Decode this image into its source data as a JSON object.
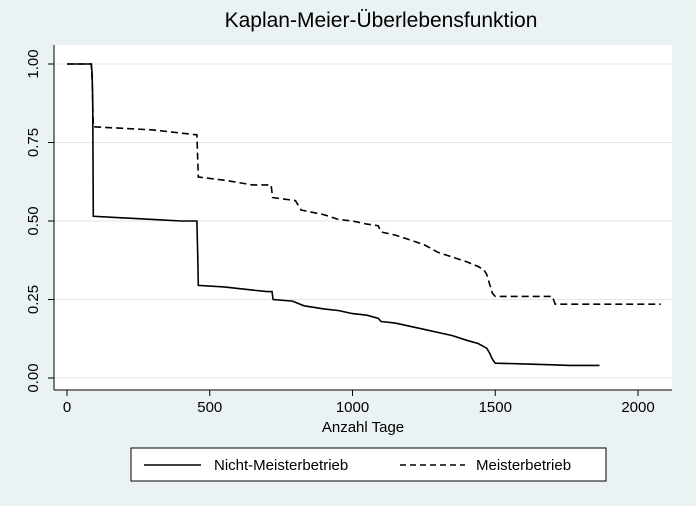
{
  "chart_data": {
    "type": "line",
    "title": "Kaplan-Meier-Überlebensfunktion",
    "xlabel": "Anzahl Tage",
    "ylabel": "",
    "xlim": [
      0,
      2000
    ],
    "ylim": [
      0,
      1
    ],
    "x_ticks": [
      "0",
      "500",
      "1000",
      "1500",
      "2000"
    ],
    "y_ticks": [
      "0.00",
      "0.25",
      "0.50",
      "0.75",
      "1.00"
    ],
    "grid": true,
    "legend_position": "bottom",
    "series": [
      {
        "name": "Nicht-Meisterbetrieb",
        "style": "solid",
        "color": "#000000",
        "points": [
          [
            0,
            1.0
          ],
          [
            85,
            1.0
          ],
          [
            88,
            0.97
          ],
          [
            90,
            0.89
          ],
          [
            92,
            0.515
          ],
          [
            200,
            0.51
          ],
          [
            300,
            0.505
          ],
          [
            400,
            0.5
          ],
          [
            455,
            0.5
          ],
          [
            458,
            0.38
          ],
          [
            460,
            0.295
          ],
          [
            550,
            0.29
          ],
          [
            650,
            0.28
          ],
          [
            700,
            0.275
          ],
          [
            718,
            0.275
          ],
          [
            722,
            0.25
          ],
          [
            790,
            0.245
          ],
          [
            830,
            0.23
          ],
          [
            900,
            0.22
          ],
          [
            950,
            0.215
          ],
          [
            1000,
            0.205
          ],
          [
            1050,
            0.2
          ],
          [
            1090,
            0.19
          ],
          [
            1100,
            0.18
          ],
          [
            1150,
            0.175
          ],
          [
            1200,
            0.165
          ],
          [
            1250,
            0.155
          ],
          [
            1300,
            0.145
          ],
          [
            1350,
            0.135
          ],
          [
            1400,
            0.12
          ],
          [
            1440,
            0.11
          ],
          [
            1470,
            0.095
          ],
          [
            1480,
            0.08
          ],
          [
            1490,
            0.06
          ],
          [
            1500,
            0.047
          ],
          [
            1600,
            0.045
          ],
          [
            1700,
            0.042
          ],
          [
            1760,
            0.04
          ],
          [
            1865,
            0.04
          ]
        ]
      },
      {
        "name": "Meisterbetrieb",
        "style": "dashed",
        "color": "#000000",
        "points": [
          [
            0,
            1.0
          ],
          [
            85,
            1.0
          ],
          [
            88,
            0.95
          ],
          [
            92,
            0.8
          ],
          [
            200,
            0.795
          ],
          [
            300,
            0.79
          ],
          [
            400,
            0.78
          ],
          [
            450,
            0.775
          ],
          [
            455,
            0.775
          ],
          [
            460,
            0.64
          ],
          [
            550,
            0.63
          ],
          [
            650,
            0.615
          ],
          [
            715,
            0.615
          ],
          [
            720,
            0.575
          ],
          [
            800,
            0.565
          ],
          [
            820,
            0.535
          ],
          [
            900,
            0.52
          ],
          [
            950,
            0.505
          ],
          [
            1000,
            0.5
          ],
          [
            1050,
            0.49
          ],
          [
            1090,
            0.485
          ],
          [
            1100,
            0.465
          ],
          [
            1150,
            0.455
          ],
          [
            1200,
            0.44
          ],
          [
            1250,
            0.425
          ],
          [
            1300,
            0.4
          ],
          [
            1350,
            0.385
          ],
          [
            1400,
            0.37
          ],
          [
            1440,
            0.355
          ],
          [
            1460,
            0.345
          ],
          [
            1470,
            0.33
          ],
          [
            1480,
            0.3
          ],
          [
            1490,
            0.27
          ],
          [
            1500,
            0.26
          ],
          [
            1700,
            0.26
          ],
          [
            1710,
            0.235
          ],
          [
            2080,
            0.235
          ]
        ]
      }
    ]
  }
}
